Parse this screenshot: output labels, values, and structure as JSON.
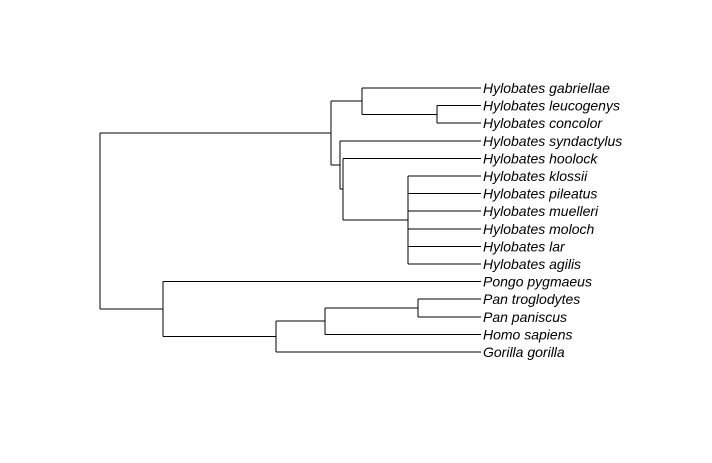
{
  "tree": {
    "branch_color": "#000000",
    "label_color": "#000000",
    "taxa": [
      "Hylobates gabriellae",
      "Hylobates leucogenys",
      "Hylobates concolor",
      "Hylobates syndactylus",
      "Hylobates hoolock",
      "Hylobates klossii",
      "Hylobates pileatus",
      "Hylobates muelleri",
      "Hylobates moloch",
      "Hylobates lar",
      "Hylobates agilis",
      "Pongo pygmaeus",
      "Pan troglodytes",
      "Pan paniscus",
      "Homo sapiens",
      "Gorilla gorilla"
    ]
  }
}
